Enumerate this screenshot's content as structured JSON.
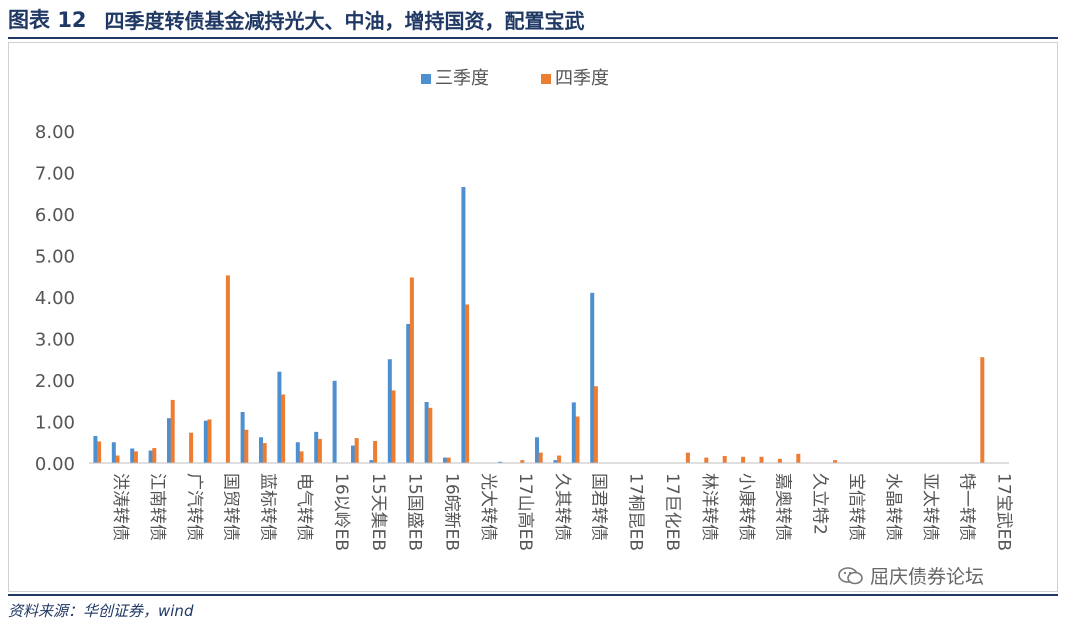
{
  "header": {
    "figure_label": "图表",
    "figure_number": "12",
    "title": "四季度转债基金减持光大、中油，增持国资，配置宝武"
  },
  "footer": {
    "source": "资料来源：华创证券，wind"
  },
  "watermark": {
    "text": "屈庆债券论坛",
    "icon": "wechat-icon"
  },
  "colors": {
    "series_q3": "#4e8fd0",
    "series_q4": "#ed7d31",
    "title": "#1f3864",
    "axis_text": "#555555"
  },
  "chart_data": {
    "type": "bar",
    "title": "",
    "xlabel": "",
    "ylabel": "",
    "ylim": [
      0,
      8
    ],
    "yticks": [
      "0.00",
      "1.00",
      "2.00",
      "3.00",
      "4.00",
      "5.00",
      "6.00",
      "7.00",
      "8.00"
    ],
    "grid": false,
    "legend": "top-center",
    "categories": [
      "洪涛转债",
      "江南转债",
      "广汽转债",
      "国贸转债",
      "蓝标转债",
      "电气转债",
      "16以岭EB",
      "15天集EB",
      "15国盛EB",
      "16皖新EB",
      "光大转债",
      "17山高EB",
      "久其转债",
      "国君转债",
      "17桐昆EB",
      "17巨化EB",
      "林洋转债",
      "小康转债",
      "嘉奥转债",
      "久立特2",
      "宝信转债",
      "水晶转债",
      "亚太转债",
      "特一转债",
      "17宝武EB"
    ],
    "series": [
      {
        "name": "三季度",
        "values": [
          0.65,
          0.35,
          1.08,
          1.02,
          1.23,
          2.2,
          0.75,
          0.42,
          2.5,
          1.47,
          6.65,
          0.03,
          0.62,
          1.46,
          0,
          0,
          0,
          0,
          0,
          0,
          0,
          0,
          0,
          0,
          0
        ]
      },
      {
        "name": "四季度",
        "values": [
          0.52,
          0.28,
          1.52,
          1.05,
          0.8,
          1.65,
          0.58,
          0.6,
          1.75,
          1.33,
          3.82,
          0.0,
          0.25,
          1.12,
          0,
          0,
          0.25,
          0.17,
          0.15,
          0.22,
          0.07,
          0,
          0,
          0,
          2.55
        ]
      }
    ],
    "extra_bars": [
      {
        "name": "三季度",
        "values": [
          0.5,
          0.3,
          0,
          0,
          0.62,
          0.5,
          1.98,
          0.07,
          3.35,
          0.13,
          0,
          0,
          0.07,
          4.1,
          0,
          0,
          0,
          0,
          0,
          0,
          0,
          0,
          0,
          0,
          0
        ]
      },
      {
        "name": "四季度",
        "values": [
          0.18,
          0.36,
          0.73,
          4.52,
          0.48,
          0.28,
          0,
          0.53,
          4.47,
          0.13,
          0,
          0.07,
          0.18,
          1.85,
          0,
          0,
          0.13,
          0.15,
          0.1,
          0,
          0,
          0,
          0,
          0,
          0
        ]
      }
    ]
  }
}
